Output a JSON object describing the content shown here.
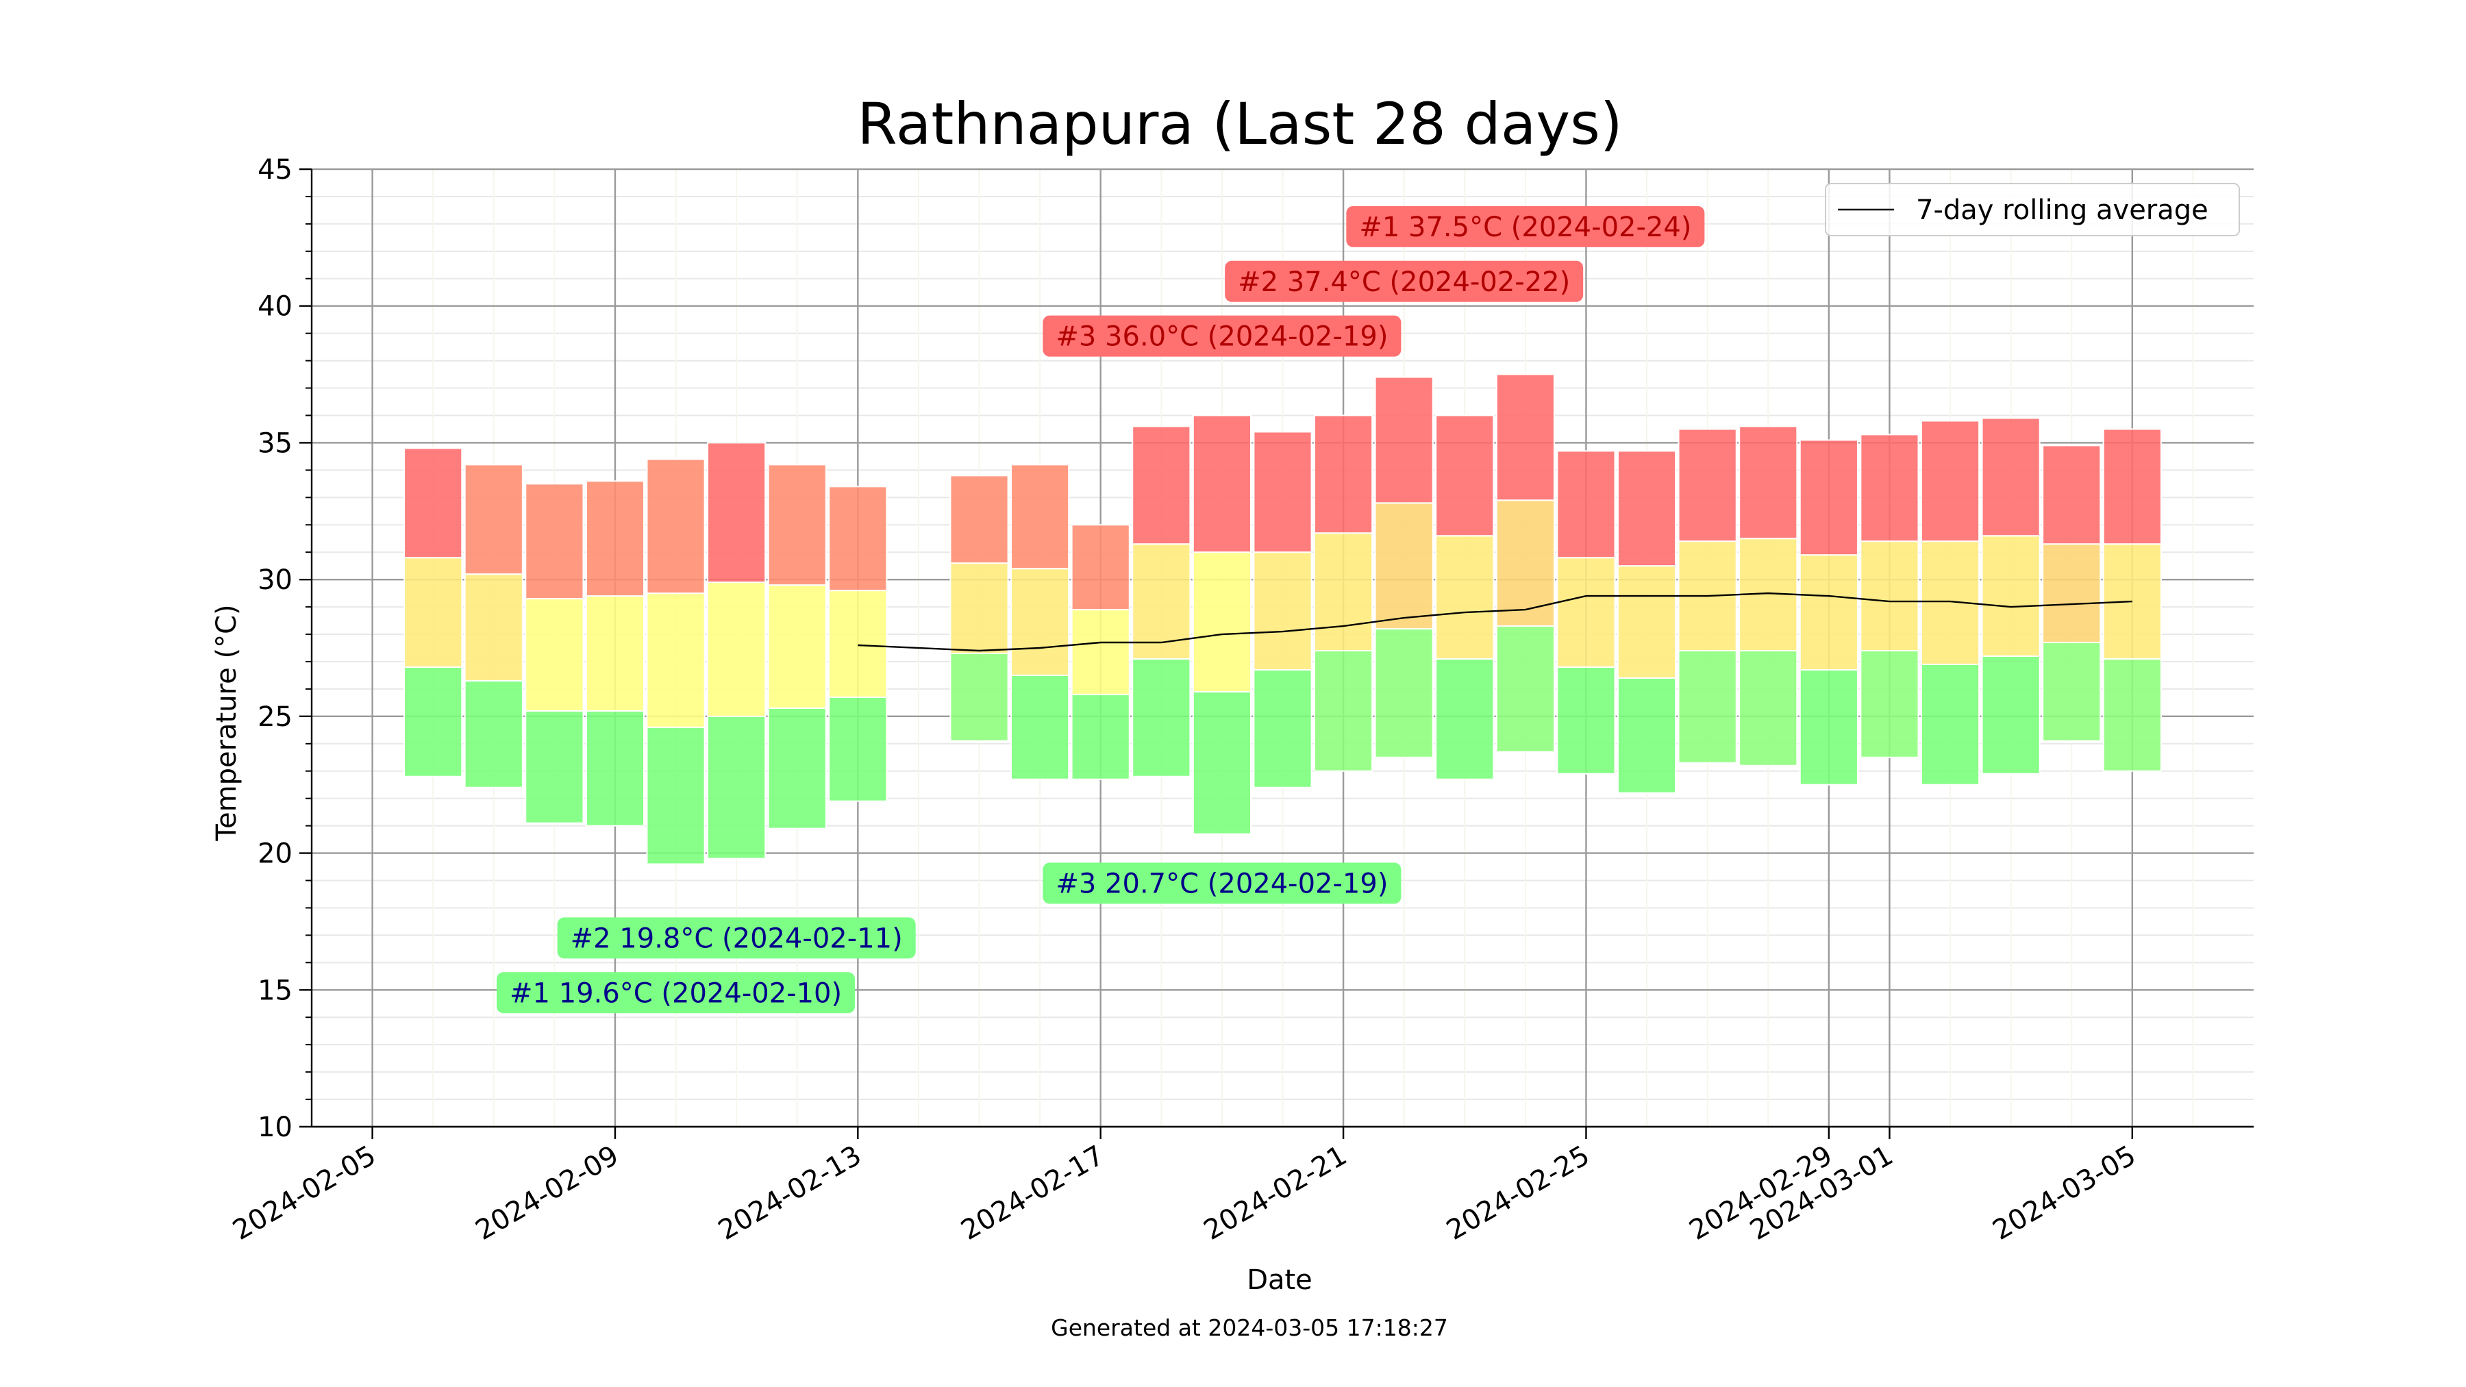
{
  "chart_data": {
    "type": "bar",
    "title": "Rathnapura (Last 28 days)",
    "xlabel": "Date",
    "ylabel": "Temperature (°C)",
    "footer": "Generated at 2024-03-05 17:18:27",
    "ylim": [
      10,
      45
    ],
    "xlim": [
      "2024-02-04",
      "2024-03-07"
    ],
    "y_ticks": [
      "10",
      "15",
      "20",
      "25",
      "30",
      "35",
      "40",
      "45"
    ],
    "x_ticks": [
      {
        "date": "2024-02-05",
        "label": "2024-02-05"
      },
      {
        "date": "2024-02-09",
        "label": "2024-02-09"
      },
      {
        "date": "2024-02-13",
        "label": "2024-02-13"
      },
      {
        "date": "2024-02-17",
        "label": "2024-02-17"
      },
      {
        "date": "2024-02-21",
        "label": "2024-02-21"
      },
      {
        "date": "2024-02-25",
        "label": "2024-02-25"
      },
      {
        "date": "2024-02-29",
        "label": "2024-02-29"
      },
      {
        "date": "2024-03-01",
        "label": "2024-03-01"
      },
      {
        "date": "2024-03-05",
        "label": "2024-03-05"
      }
    ],
    "grid": true,
    "legend": {
      "position": "top-right",
      "entries": [
        "7-day rolling average"
      ]
    },
    "days": [
      {
        "date": "2024-02-06",
        "min": 22.8,
        "mean": 26.8,
        "max": 34.8,
        "upper": 30.8
      },
      {
        "date": "2024-02-07",
        "min": 22.4,
        "mean": 26.3,
        "max": 34.2,
        "upper": 30.2
      },
      {
        "date": "2024-02-08",
        "min": 21.1,
        "mean": 25.2,
        "max": 33.5,
        "upper": 29.3
      },
      {
        "date": "2024-02-09",
        "min": 21.0,
        "mean": 25.2,
        "max": 33.6,
        "upper": 29.4
      },
      {
        "date": "2024-02-10",
        "min": 19.6,
        "mean": 24.6,
        "max": 34.4,
        "upper": 29.5
      },
      {
        "date": "2024-02-11",
        "min": 19.8,
        "mean": 25.0,
        "max": 35.0,
        "upper": 29.9
      },
      {
        "date": "2024-02-12",
        "min": 20.9,
        "mean": 25.3,
        "max": 34.2,
        "upper": 29.8
      },
      {
        "date": "2024-02-13",
        "min": 21.9,
        "mean": 25.7,
        "max": 33.4,
        "upper": 29.6
      },
      {
        "date": "2024-02-15",
        "min": 24.1,
        "mean": 27.3,
        "max": 33.8,
        "upper": 30.6
      },
      {
        "date": "2024-02-16",
        "min": 22.7,
        "mean": 26.5,
        "max": 34.2,
        "upper": 30.4
      },
      {
        "date": "2024-02-17",
        "min": 22.7,
        "mean": 25.8,
        "max": 32.0,
        "upper": 28.9
      },
      {
        "date": "2024-02-18",
        "min": 22.8,
        "mean": 27.1,
        "max": 35.6,
        "upper": 31.3
      },
      {
        "date": "2024-02-19",
        "min": 20.7,
        "mean": 25.9,
        "max": 36.0,
        "upper": 31.0
      },
      {
        "date": "2024-02-20",
        "min": 22.4,
        "mean": 26.7,
        "max": 35.4,
        "upper": 31.0
      },
      {
        "date": "2024-02-21",
        "min": 23.0,
        "mean": 27.4,
        "max": 36.0,
        "upper": 31.7
      },
      {
        "date": "2024-02-22",
        "min": 23.5,
        "mean": 28.2,
        "max": 37.4,
        "upper": 32.8
      },
      {
        "date": "2024-02-23",
        "min": 22.7,
        "mean": 27.1,
        "max": 36.0,
        "upper": 31.6
      },
      {
        "date": "2024-02-24",
        "min": 23.7,
        "mean": 28.3,
        "max": 37.5,
        "upper": 32.9
      },
      {
        "date": "2024-02-25",
        "min": 22.9,
        "mean": 26.8,
        "max": 34.7,
        "upper": 30.8
      },
      {
        "date": "2024-02-26",
        "min": 22.2,
        "mean": 26.4,
        "max": 34.7,
        "upper": 30.5
      },
      {
        "date": "2024-02-27",
        "min": 23.3,
        "mean": 27.4,
        "max": 35.5,
        "upper": 31.4
      },
      {
        "date": "2024-02-28",
        "min": 23.2,
        "mean": 27.4,
        "max": 35.6,
        "upper": 31.5
      },
      {
        "date": "2024-02-29",
        "min": 22.5,
        "mean": 26.7,
        "max": 35.1,
        "upper": 30.9
      },
      {
        "date": "2024-03-01",
        "min": 23.5,
        "mean": 27.4,
        "max": 35.3,
        "upper": 31.4
      },
      {
        "date": "2024-03-02",
        "min": 22.5,
        "mean": 26.9,
        "max": 35.8,
        "upper": 31.4
      },
      {
        "date": "2024-03-03",
        "min": 22.9,
        "mean": 27.2,
        "max": 35.9,
        "upper": 31.6
      },
      {
        "date": "2024-03-04",
        "min": 24.1,
        "mean": 27.7,
        "max": 34.9,
        "upper": 31.3
      },
      {
        "date": "2024-03-05",
        "min": 23.0,
        "mean": 27.1,
        "max": 35.5,
        "upper": 31.3
      }
    ],
    "series": [
      {
        "name": "7-day rolling average",
        "type": "line",
        "color": "#000000",
        "points": [
          {
            "date": "2024-02-13",
            "value": 27.6
          },
          {
            "date": "2024-02-15",
            "value": 27.4
          },
          {
            "date": "2024-02-16",
            "value": 27.5
          },
          {
            "date": "2024-02-17",
            "value": 27.7
          },
          {
            "date": "2024-02-18",
            "value": 27.7
          },
          {
            "date": "2024-02-19",
            "value": 28.0
          },
          {
            "date": "2024-02-20",
            "value": 28.1
          },
          {
            "date": "2024-02-21",
            "value": 28.3
          },
          {
            "date": "2024-02-22",
            "value": 28.6
          },
          {
            "date": "2024-02-23",
            "value": 28.8
          },
          {
            "date": "2024-02-24",
            "value": 28.9
          },
          {
            "date": "2024-02-25",
            "value": 29.4
          },
          {
            "date": "2024-02-26",
            "value": 29.4
          },
          {
            "date": "2024-02-27",
            "value": 29.4
          },
          {
            "date": "2024-02-28",
            "value": 29.5
          },
          {
            "date": "2024-02-29",
            "value": 29.4
          },
          {
            "date": "2024-03-01",
            "value": 29.2
          },
          {
            "date": "2024-03-02",
            "value": 29.2
          },
          {
            "date": "2024-03-03",
            "value": 29.0
          },
          {
            "date": "2024-03-04",
            "value": 29.1
          },
          {
            "date": "2024-03-05",
            "value": 29.2
          }
        ]
      }
    ],
    "annotations": {
      "max": [
        {
          "text": "#1 37.5°C (2024-02-24)",
          "date": "2024-02-24",
          "y": 42.9
        },
        {
          "text": "#2 37.4°C (2024-02-22)",
          "date": "2024-02-22",
          "y": 40.9
        },
        {
          "text": "#3 36.0°C (2024-02-19)",
          "date": "2024-02-19",
          "y": 38.9
        }
      ],
      "min": [
        {
          "text": "#1 19.6°C (2024-02-10)",
          "date": "2024-02-10",
          "y": 14.9
        },
        {
          "text": "#2 19.8°C (2024-02-11)",
          "date": "2024-02-11",
          "y": 16.9
        },
        {
          "text": "#3 20.7°C (2024-02-19)",
          "date": "2024-02-19",
          "y": 18.9
        }
      ]
    },
    "colors": {
      "hot": "#ff6b6b",
      "warm": "#fdd472",
      "mild": "#ffff80",
      "cool": "#96ff78",
      "cold": "#78ff78",
      "max_label_bg": "#ff7070",
      "max_label_text": "#b00000",
      "min_label_bg": "#7cff84",
      "min_label_text": "#00008b"
    }
  }
}
